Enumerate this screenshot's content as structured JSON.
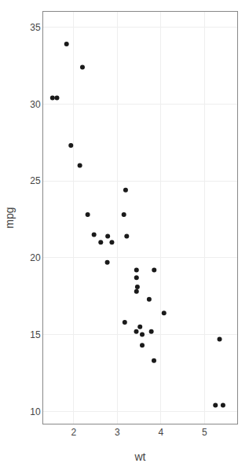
{
  "chart_data": {
    "type": "scatter",
    "x": [
      2.62,
      2.875,
      2.32,
      3.215,
      3.44,
      3.46,
      3.57,
      3.19,
      3.15,
      3.44,
      3.44,
      4.07,
      3.73,
      3.78,
      5.25,
      5.424,
      5.345,
      2.2,
      1.615,
      1.835,
      2.465,
      3.52,
      3.435,
      3.84,
      3.845,
      1.935,
      2.14,
      1.513,
      3.17,
      2.77,
      3.57,
      2.78
    ],
    "values": [
      21.0,
      21.0,
      22.8,
      21.4,
      18.7,
      18.1,
      14.3,
      24.4,
      22.8,
      19.2,
      17.8,
      16.4,
      17.3,
      15.2,
      10.4,
      10.4,
      14.7,
      32.4,
      30.4,
      33.9,
      21.5,
      15.5,
      15.2,
      13.3,
      19.2,
      27.3,
      26.0,
      30.4,
      15.8,
      19.7,
      15.0,
      21.4
    ],
    "xlim": [
      1.3,
      5.75
    ],
    "ylim": [
      9.2,
      36.0
    ],
    "xticks": [
      2,
      3,
      4,
      5
    ],
    "yticks": [
      10,
      15,
      20,
      25,
      30,
      35
    ],
    "xlabel": "wt",
    "ylabel": "mpg",
    "color": "#1a1a1a",
    "grid": true
  }
}
